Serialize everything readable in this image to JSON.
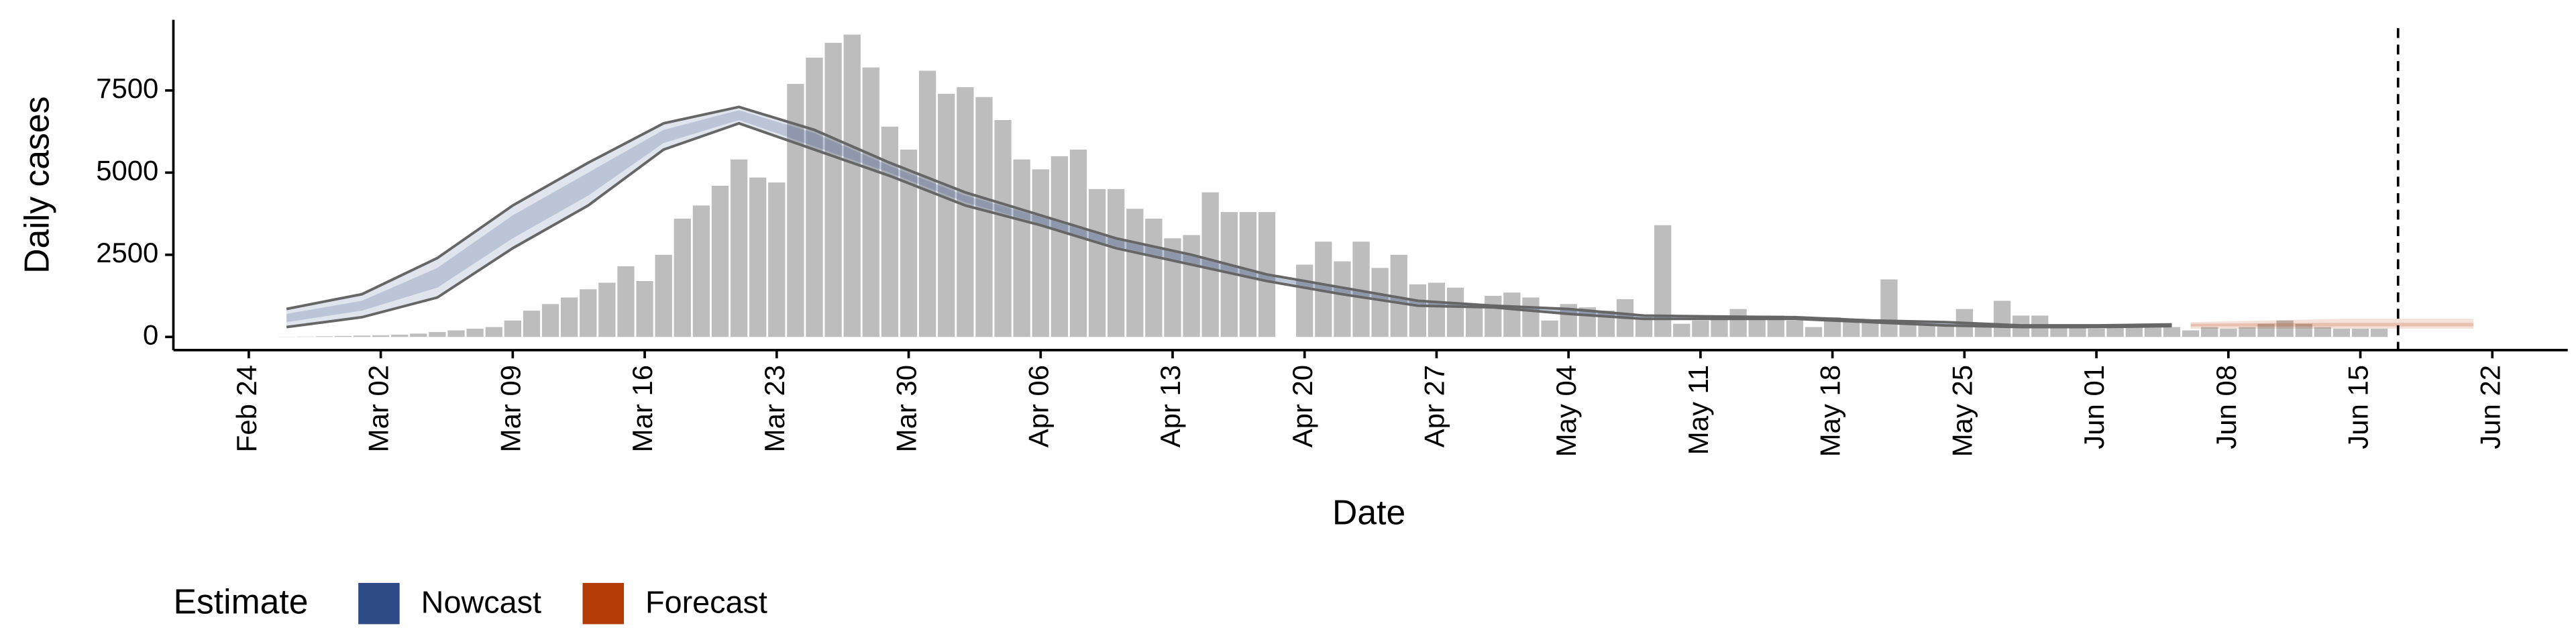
{
  "chart_data": {
    "type": "bar",
    "x_label": "Date",
    "y_label": "Daily cases",
    "x": [
      "Feb 26",
      "Feb 27",
      "Feb 28",
      "Feb 29",
      "Mar 1",
      "Mar 2",
      "Mar 3",
      "Mar 4",
      "Mar 5",
      "Mar 6",
      "Mar 7",
      "Mar 8",
      "Mar 9",
      "Mar 10",
      "Mar 11",
      "Mar 12",
      "Mar 13",
      "Mar 14",
      "Mar 15",
      "Mar 16",
      "Mar 17",
      "Mar 18",
      "Mar 19",
      "Mar 20",
      "Mar 21",
      "Mar 22",
      "Mar 23",
      "Mar 24",
      "Mar 25",
      "Mar 26",
      "Mar 27",
      "Mar 28",
      "Mar 29",
      "Mar 30",
      "Mar 31",
      "Apr 1",
      "Apr 2",
      "Apr 3",
      "Apr 4",
      "Apr 5",
      "Apr 6",
      "Apr 7",
      "Apr 8",
      "Apr 9",
      "Apr 10",
      "Apr 11",
      "Apr 12",
      "Apr 13",
      "Apr 14",
      "Apr 15",
      "Apr 16",
      "Apr 17",
      "Apr 18",
      "Apr 19",
      "Apr 20",
      "Apr 21",
      "Apr 22",
      "Apr 23",
      "Apr 24",
      "Apr 25",
      "Apr 26",
      "Apr 27",
      "Apr 28",
      "Apr 29",
      "Apr 30",
      "May 1",
      "May 2",
      "May 3",
      "May 4",
      "May 5",
      "May 6",
      "May 7",
      "May 8",
      "May 9",
      "May 10",
      "May 11",
      "May 12",
      "May 13",
      "May 14",
      "May 15",
      "May 16",
      "May 17",
      "May 18",
      "May 19",
      "May 20",
      "May 21",
      "May 22",
      "May 23",
      "May 24",
      "May 25",
      "May 26",
      "May 27",
      "May 28",
      "May 29",
      "May 30",
      "May 31",
      "Jun 1",
      "Jun 2",
      "Jun 3",
      "Jun 4",
      "Jun 5",
      "Jun 6",
      "Jun 7",
      "Jun 8",
      "Jun 9",
      "Jun 10",
      "Jun 11",
      "Jun 12",
      "Jun 13",
      "Jun 14",
      "Jun 15",
      "Jun 16"
    ],
    "values": [
      5,
      10,
      20,
      30,
      40,
      50,
      70,
      100,
      150,
      200,
      250,
      300,
      500,
      800,
      1000,
      1200,
      1450,
      1650,
      2150,
      1700,
      2500,
      3600,
      4000,
      4600,
      5400,
      4850,
      4700,
      7700,
      8500,
      8950,
      9200,
      8200,
      6400,
      5700,
      8100,
      7400,
      7600,
      7300,
      6600,
      5400,
      5100,
      5500,
      5700,
      4500,
      4500,
      3900,
      3600,
      3000,
      3100,
      4400,
      3800,
      3800,
      3800,
      0,
      2200,
      2900,
      2300,
      2900,
      2100,
      2500,
      1600,
      1650,
      1500,
      900,
      1250,
      1350,
      1200,
      500,
      1000,
      900,
      800,
      1150,
      600,
      3400,
      400,
      500,
      600,
      850,
      600,
      650,
      500,
      300,
      600,
      500,
      500,
      1750,
      500,
      400,
      350,
      850,
      400,
      1100,
      650,
      650,
      300,
      300,
      250,
      300,
      300,
      300,
      300,
      200,
      300,
      250,
      300,
      400,
      500,
      400,
      300,
      250,
      250,
      250
    ],
    "color": "#bdbdbd",
    "xlim": [
      "Feb 20",
      "Jun 26"
    ],
    "xticks": [
      "Feb 24",
      "Mar 02",
      "Mar 09",
      "Mar 16",
      "Mar 23",
      "Mar 30",
      "Apr 06",
      "Apr 13",
      "Apr 20",
      "Apr 27",
      "May 04",
      "May 11",
      "May 18",
      "May 25",
      "Jun 01",
      "Jun 08",
      "Jun 15",
      "Jun 22"
    ],
    "ylim": [
      -400,
      9650
    ],
    "yticks": [
      0,
      2500,
      5000,
      7500
    ],
    "vline": "Jun 17",
    "legend": {
      "title": "Estimate",
      "position": "bottom-left"
    },
    "estimates": [
      {
        "name": "Nowcast",
        "color": "#2e4a87",
        "edge_lines": true,
        "x": [
          "Feb 26",
          "Mar 1",
          "Mar 5",
          "Mar 9",
          "Mar 13",
          "Mar 17",
          "Mar 21",
          "Mar 25",
          "Mar 29",
          "Apr 2",
          "Apr 6",
          "Apr 10",
          "Apr 14",
          "Apr 18",
          "Apr 22",
          "Apr 26",
          "Apr 30",
          "May 4",
          "May 8",
          "May 12",
          "May 16",
          "May 20",
          "May 24",
          "May 28",
          "Jun 1",
          "Jun 5"
        ],
        "upper90": [
          850,
          1300,
          2400,
          4000,
          5300,
          6500,
          7000,
          6300,
          5300,
          4400,
          3700,
          3000,
          2500,
          1900,
          1500,
          1100,
          950,
          850,
          650,
          620,
          600,
          500,
          450,
          350,
          350,
          380
        ],
        "lower90": [
          300,
          600,
          1200,
          2700,
          4000,
          5700,
          6500,
          5700,
          4900,
          4000,
          3400,
          2700,
          2200,
          1700,
          1300,
          950,
          900,
          700,
          550,
          550,
          550,
          450,
          350,
          300,
          300,
          330
        ],
        "upper50": [
          700,
          1100,
          2100,
          3700,
          5000,
          6300,
          6900,
          6200,
          5200,
          4300,
          3650,
          2950,
          2450,
          1850,
          1450,
          1050,
          940,
          820,
          630,
          600,
          590,
          490,
          430,
          340,
          340,
          370
        ],
        "lower50": [
          450,
          800,
          1500,
          3000,
          4300,
          5900,
          6600,
          5800,
          5000,
          4100,
          3450,
          2750,
          2250,
          1750,
          1350,
          1000,
          910,
          730,
          570,
          560,
          560,
          460,
          370,
          310,
          310,
          340
        ]
      },
      {
        "name": "Forecast",
        "color": "#b33c06",
        "edge_lines": false,
        "x": [
          "Jun 6",
          "Jun 10",
          "Jun 14",
          "Jun 18",
          "Jun 21"
        ],
        "upper90": [
          450,
          500,
          550,
          550,
          550
        ],
        "lower90": [
          250,
          250,
          250,
          250,
          250
        ],
        "upper50": [
          400,
          420,
          430,
          430,
          430
        ],
        "lower50": [
          320,
          320,
          320,
          320,
          320
        ]
      }
    ]
  }
}
